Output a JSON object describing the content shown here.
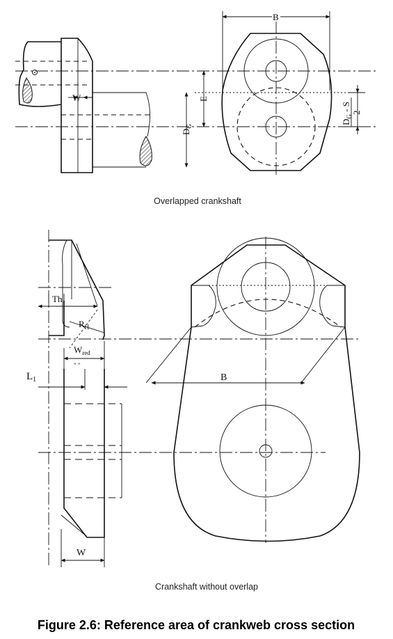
{
  "top_diagram": {
    "caption": "Overlapped crankshaft",
    "labels": {
      "B": "B",
      "W": "W",
      "E": "E",
      "DG": "D",
      "DG_sub": "G",
      "frac_num_main": "D",
      "frac_num_sub": "G",
      "frac_num_rest": " - S",
      "frac_den": "2"
    }
  },
  "bottom_diagram": {
    "caption": "Crankshaft without overlap",
    "labels": {
      "Th": "Th",
      "RH": "R",
      "RH_sub": "H",
      "Wred": "W",
      "Wred_sub": "red",
      "L1": "L",
      "L1_sub": "1",
      "B": "B",
      "W": "W",
      "tick_marks": "\"    \""
    }
  },
  "figure_title": "Figure 2.6: Reference area of crankweb cross section"
}
